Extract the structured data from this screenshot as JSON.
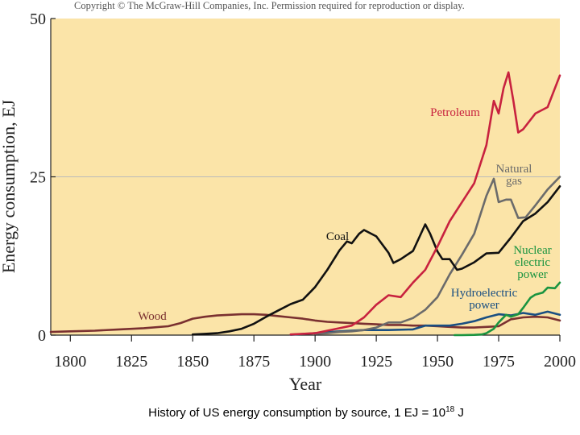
{
  "header": {
    "copyright": "Copyright © The McGraw-Hill Companies, Inc. Permission required for reproduction or display."
  },
  "caption": {
    "text_before": "History of US energy consumption by source, 1 EJ = 10",
    "superscript": "18",
    "text_after": " J"
  },
  "colors": {
    "plot_background": "#fbe4a8",
    "gridline": "#bbbbbb",
    "axis": "#222222",
    "petroleum": "#c8223f",
    "natural_gas": "#6b6b6b",
    "coal": "#111111",
    "wood": "#7a3030",
    "hydroelectric": "#1a4f82",
    "nuclear": "#1a9440"
  },
  "chart_data": {
    "type": "line",
    "title": "",
    "xlabel": "Year",
    "ylabel": "Energy consumption, EJ",
    "xlim": [
      1792,
      2000
    ],
    "ylim": [
      0,
      50
    ],
    "x_ticks": [
      "1800",
      "1825",
      "1850",
      "1875",
      "1900",
      "1925",
      "1950",
      "1975",
      "2000"
    ],
    "y_ticks": [
      "0",
      "25",
      "50"
    ],
    "gridlines_y": [
      25
    ],
    "series": [
      {
        "name": "Wood",
        "color_key": "wood",
        "x": [
          1792,
          1800,
          1810,
          1820,
          1830,
          1840,
          1845,
          1850,
          1855,
          1860,
          1865,
          1870,
          1875,
          1880,
          1885,
          1890,
          1895,
          1900,
          1905,
          1910,
          1915,
          1920,
          1925,
          1930,
          1935,
          1940,
          1945,
          1950,
          1955,
          1960,
          1965,
          1970,
          1975,
          1980,
          1985,
          1990,
          1995,
          2000
        ],
        "y": [
          0.5,
          0.6,
          0.7,
          0.9,
          1.1,
          1.4,
          1.9,
          2.6,
          2.9,
          3.1,
          3.2,
          3.3,
          3.3,
          3.2,
          3.0,
          2.8,
          2.6,
          2.3,
          2.1,
          2.0,
          1.9,
          1.8,
          1.7,
          1.6,
          1.6,
          1.5,
          1.5,
          1.4,
          1.3,
          1.2,
          1.2,
          1.3,
          1.4,
          2.5,
          2.8,
          2.9,
          2.8,
          2.3
        ]
      },
      {
        "name": "Coal",
        "color_key": "coal",
        "x": [
          1850,
          1855,
          1860,
          1865,
          1870,
          1875,
          1880,
          1885,
          1890,
          1895,
          1900,
          1905,
          1910,
          1913,
          1915,
          1918,
          1920,
          1925,
          1930,
          1932,
          1935,
          1940,
          1945,
          1947,
          1950,
          1952,
          1955,
          1958,
          1960,
          1965,
          1970,
          1975,
          1980,
          1985,
          1990,
          1995,
          2000
        ],
        "y": [
          0.1,
          0.2,
          0.3,
          0.6,
          1.0,
          1.8,
          2.9,
          3.9,
          4.9,
          5.6,
          7.6,
          10.3,
          13.4,
          14.8,
          14.5,
          16.0,
          16.6,
          15.6,
          13.0,
          11.4,
          12.0,
          13.3,
          17.5,
          16.0,
          13.2,
          12.0,
          12.0,
          10.3,
          10.5,
          11.5,
          12.9,
          13.0,
          15.4,
          18.0,
          19.2,
          21.0,
          23.5
        ]
      },
      {
        "name": "Petroleum",
        "color_key": "petroleum",
        "x": [
          1890,
          1895,
          1900,
          1905,
          1910,
          1915,
          1920,
          1925,
          1930,
          1935,
          1940,
          1945,
          1950,
          1955,
          1960,
          1965,
          1970,
          1973,
          1975,
          1977,
          1979,
          1981,
          1983,
          1985,
          1990,
          1995,
          2000
        ],
        "y": [
          0.1,
          0.2,
          0.3,
          0.7,
          1.1,
          1.5,
          2.8,
          4.8,
          6.3,
          6.0,
          8.3,
          10.3,
          14.0,
          18.0,
          21.0,
          24.0,
          30.0,
          37.0,
          35.0,
          39.0,
          41.5,
          37.0,
          32.0,
          32.5,
          35.0,
          36.0,
          41.0
        ]
      },
      {
        "name": "Natural gas",
        "color_key": "natural_gas",
        "x": [
          1900,
          1905,
          1910,
          1915,
          1920,
          1925,
          1930,
          1935,
          1940,
          1945,
          1950,
          1955,
          1960,
          1965,
          1970,
          1973,
          1975,
          1978,
          1980,
          1983,
          1986,
          1990,
          1995,
          2000
        ],
        "y": [
          0.2,
          0.3,
          0.5,
          0.6,
          0.8,
          1.2,
          2.0,
          2.0,
          2.7,
          4.0,
          6.0,
          9.6,
          12.7,
          16.0,
          22.0,
          24.7,
          21.0,
          21.4,
          21.4,
          18.5,
          18.6,
          20.5,
          23.0,
          25.0
        ]
      },
      {
        "name": "Hydroelectric power",
        "color_key": "hydroelectric",
        "x": [
          1890,
          1900,
          1910,
          1920,
          1930,
          1940,
          1945,
          1950,
          1955,
          1960,
          1965,
          1970,
          1975,
          1980,
          1985,
          1990,
          1995,
          2000
        ],
        "y": [
          0.05,
          0.3,
          0.6,
          0.8,
          0.8,
          0.9,
          1.5,
          1.5,
          1.5,
          1.8,
          2.2,
          2.8,
          3.3,
          3.1,
          3.5,
          3.2,
          3.7,
          3.2
        ]
      },
      {
        "name": "Nuclear electric power",
        "color_key": "nuclear",
        "x": [
          1957,
          1960,
          1965,
          1968,
          1970,
          1973,
          1975,
          1978,
          1980,
          1983,
          1985,
          1988,
          1990,
          1993,
          1995,
          1998,
          2000
        ],
        "y": [
          0.0,
          0.0,
          0.04,
          0.1,
          0.3,
          1.0,
          2.0,
          3.2,
          2.9,
          3.3,
          4.3,
          5.9,
          6.4,
          6.7,
          7.5,
          7.4,
          8.3
        ]
      }
    ],
    "annotations": [
      {
        "series": "Petroleum",
        "lines": [
          "Petroleum"
        ]
      },
      {
        "series": "Natural gas",
        "lines": [
          "Natural",
          "gas"
        ]
      },
      {
        "series": "Coal",
        "lines": [
          "Coal"
        ]
      },
      {
        "series": "Wood",
        "lines": [
          "Wood"
        ]
      },
      {
        "series": "Hydroelectric power",
        "lines": [
          "Hydroelectric",
          "power"
        ]
      },
      {
        "series": "Nuclear electric power",
        "lines": [
          "Nuclear",
          "electric",
          "power"
        ]
      }
    ]
  }
}
